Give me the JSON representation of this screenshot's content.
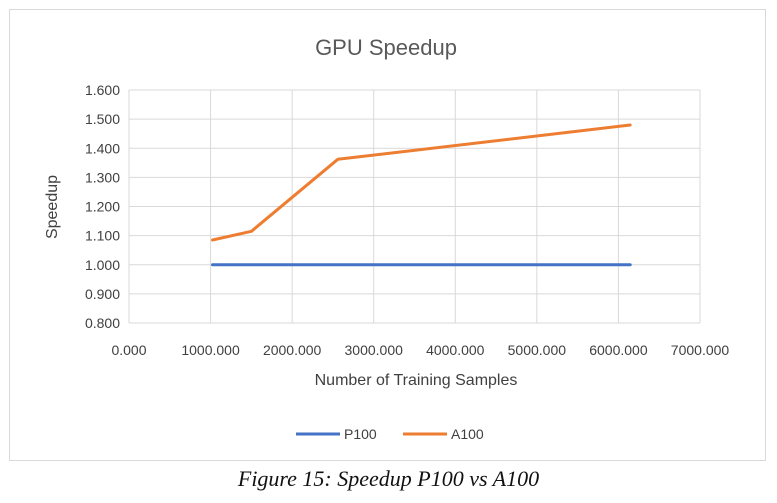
{
  "caption": "Figure 15: Speedup P100 vs A100",
  "chart_data": {
    "type": "line",
    "title": "GPU Speedup",
    "xlabel": "Number of Training Samples",
    "ylabel": "Speedup",
    "xlim": [
      0,
      7000
    ],
    "ylim": [
      0.8,
      1.6
    ],
    "xticks": [
      "0.000",
      "1000.000",
      "2000.000",
      "3000.000",
      "4000.000",
      "5000.000",
      "6000.000",
      "7000.000"
    ],
    "yticks": [
      "0.800",
      "0.900",
      "1.000",
      "1.100",
      "1.200",
      "1.300",
      "1.400",
      "1.500",
      "1.600"
    ],
    "grid": "vertical and horizontal",
    "legend_position": "bottom",
    "series": [
      {
        "name": "P100",
        "color": "#4472C4",
        "x": [
          1024,
          1500,
          2560,
          6144
        ],
        "y": [
          1.0,
          1.0,
          1.0,
          1.0
        ]
      },
      {
        "name": "A100",
        "color": "#ED7D31",
        "x": [
          1024,
          1500,
          2560,
          6144
        ],
        "y": [
          1.085,
          1.115,
          1.362,
          1.48
        ]
      }
    ]
  }
}
